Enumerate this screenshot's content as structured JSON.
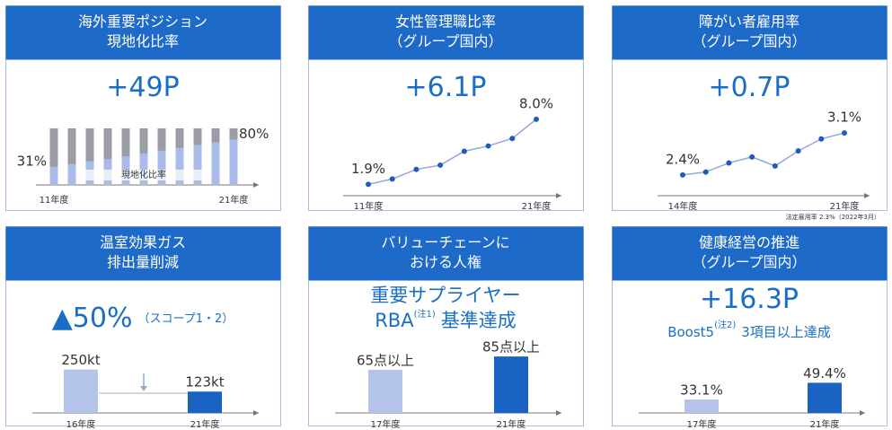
{
  "panels": [
    {
      "title": [
        "海外重要ポジション",
        "現地化比率"
      ],
      "headline": [
        "+49P"
      ],
      "chart": {
        "type": "stacked_share",
        "categories": [
          "11年度",
          null,
          null,
          null,
          null,
          null,
          null,
          null,
          null,
          null,
          "21年度"
        ],
        "values": [
          31,
          36,
          41,
          45,
          50,
          55,
          60,
          65,
          70,
          75,
          80
        ],
        "value_labels": [
          "31%",
          null,
          null,
          null,
          null,
          null,
          null,
          null,
          null,
          null,
          "80%"
        ],
        "ylim": [
          0,
          100
        ],
        "band_label": "現地化比率",
        "colors": [
          "#9a9ea4",
          "#a9bbe8"
        ]
      }
    },
    {
      "title": [
        "女性管理職比率",
        "（グループ国内）"
      ],
      "headline": [
        "+6.1P"
      ],
      "chart": {
        "type": "line",
        "categories": [
          "11年度",
          null,
          null,
          null,
          null,
          null,
          null,
          "21年度"
        ],
        "values": [
          1.9,
          2.4,
          3.3,
          3.7,
          5.0,
          5.5,
          6.2,
          8.0
        ],
        "value_labels": [
          "1.9%",
          null,
          null,
          null,
          null,
          null,
          null,
          "8.0%"
        ],
        "ylim": [
          1,
          9
        ],
        "colors": [
          "#8fa8dc",
          "#1f5bb8"
        ]
      }
    },
    {
      "title": [
        "障がい者雇用率",
        "（グループ国内）"
      ],
      "headline": [
        "+0.7P"
      ],
      "chart": {
        "type": "line",
        "categories": [
          "14年度",
          null,
          null,
          null,
          null,
          null,
          null,
          "21年度"
        ],
        "values": [
          2.4,
          2.45,
          2.6,
          2.7,
          2.55,
          2.8,
          3.0,
          3.1
        ],
        "value_labels": [
          "2.4%",
          null,
          null,
          null,
          null,
          null,
          null,
          "3.1%"
        ],
        "ylim": [
          2.1,
          3.4
        ],
        "colors": [
          "#8fa8dc",
          "#1f5bb8"
        ],
        "note": "法定雇用率 2.3%（2022年3月）"
      }
    },
    {
      "title": [
        "温室効果ガス",
        "排出量削減"
      ],
      "headline": [
        "▲50%",
        "（スコープ1・2）"
      ],
      "chart": {
        "type": "bar",
        "categories": [
          "16年度",
          "21年度"
        ],
        "values": [
          250,
          123
        ],
        "value_labels": [
          "250kt",
          "123kt"
        ],
        "ylim": [
          0,
          300
        ],
        "colors": [
          "#b4c3e8",
          "#1a63c2"
        ]
      }
    },
    {
      "title": [
        "バリューチェーンに",
        "おける人権"
      ],
      "headline": [
        "重要サプライヤー",
        "RBA",
        "(注1)",
        "基準達成"
      ],
      "chart": {
        "type": "bar",
        "categories": [
          "17年度",
          "21年度"
        ],
        "values": [
          65,
          85
        ],
        "value_labels": [
          "65点以上",
          "85点以上"
        ],
        "ylim": [
          0,
          100
        ],
        "colors": [
          "#b4c3e8",
          "#1a63c2"
        ]
      }
    },
    {
      "title": [
        "健康経営の推進",
        "（グループ国内）"
      ],
      "headline": [
        "+16.3P",
        "Boost5",
        "(注2)",
        "3項目以上達成"
      ],
      "chart": {
        "type": "bar",
        "categories": [
          "17年度",
          "21年度"
        ],
        "values": [
          33.1,
          49.4
        ],
        "value_labels": [
          "33.1%",
          "49.4%"
        ],
        "ylim": [
          20,
          55
        ],
        "colors": [
          "#b4c3e8",
          "#1a63c2"
        ]
      }
    }
  ]
}
